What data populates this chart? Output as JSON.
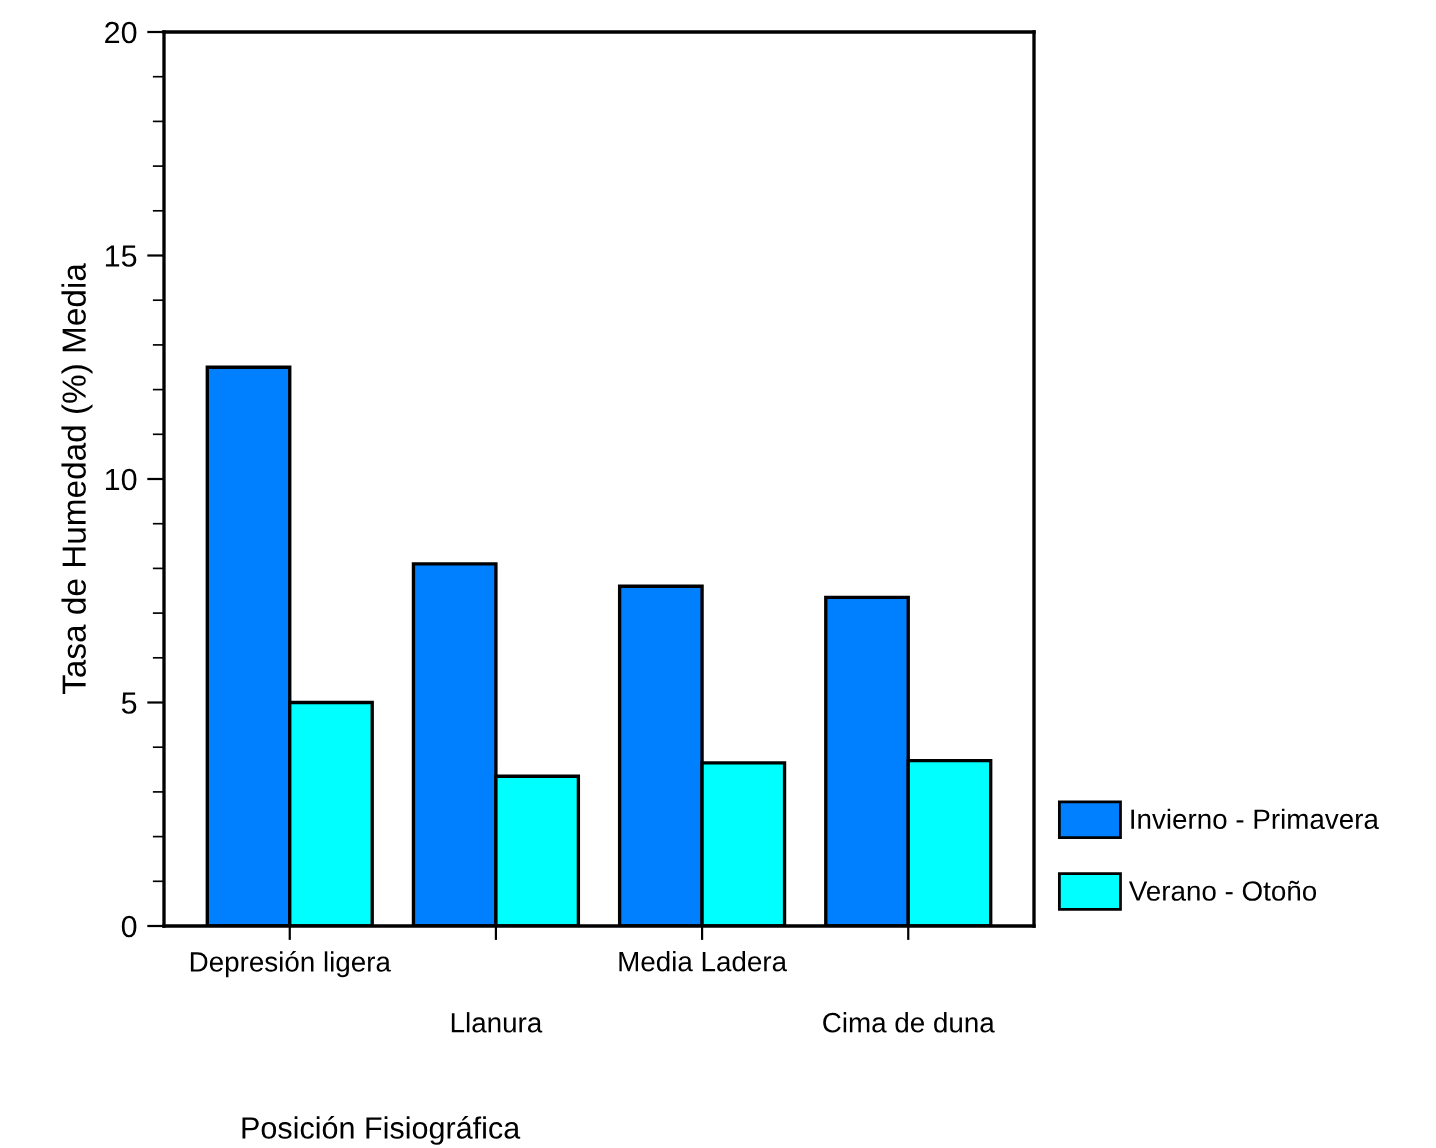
{
  "chart_data": {
    "type": "bar",
    "xlabel": "Posición Fisiográfica",
    "ylabel": "Tasa de Humedad (%) Media",
    "categories": [
      "Depresión ligera",
      "Llanura",
      "Media Ladera",
      "Cima de duna"
    ],
    "series": [
      {
        "name": "Invierno - Primavera",
        "color": "#0080ff",
        "values": [
          12.5,
          8.1,
          7.6,
          7.35
        ]
      },
      {
        "name": "Verano - Otoño",
        "color": "#00ffff",
        "values": [
          5.0,
          3.35,
          3.65,
          3.7
        ]
      }
    ],
    "ylim": [
      0,
      20
    ],
    "yticks": [
      0,
      5,
      10,
      15,
      20
    ],
    "grid": false,
    "legend": "bottom right"
  }
}
